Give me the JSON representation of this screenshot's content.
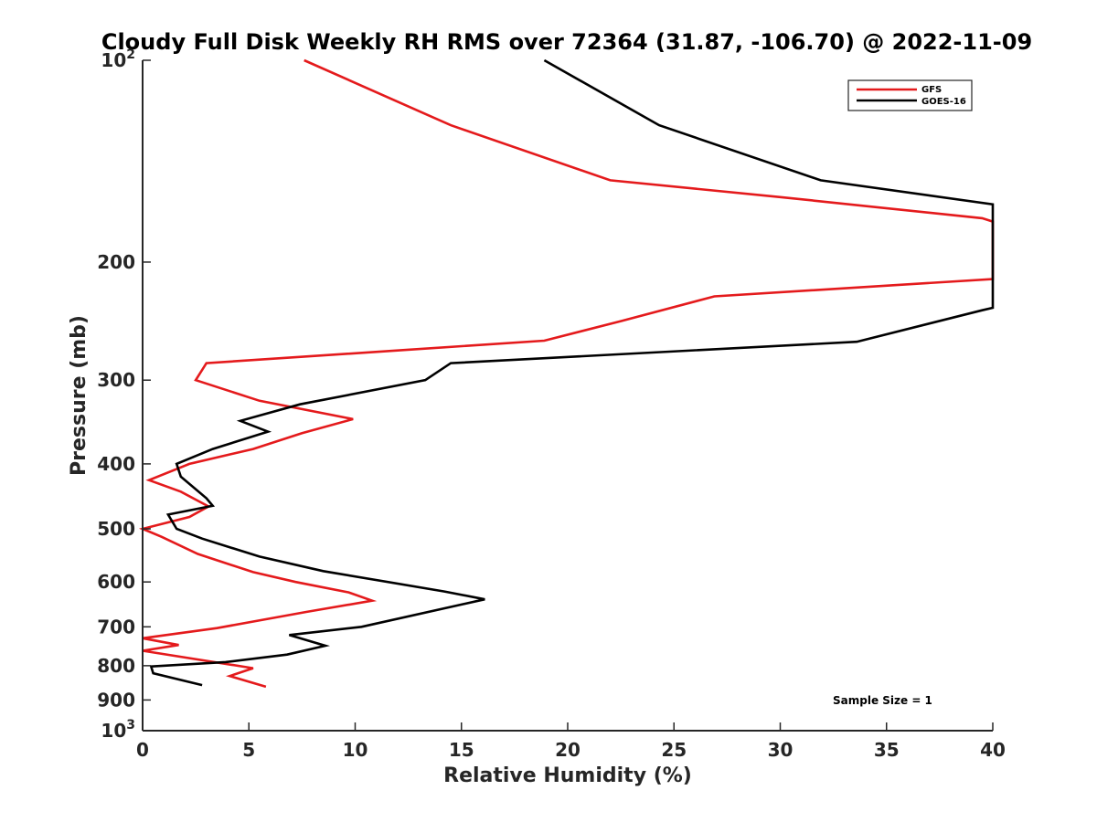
{
  "chart_data": {
    "type": "line",
    "title": "Cloudy Full Disk Weekly RH RMS over 72364 (31.87, -106.70) @ 2022-11-09",
    "xlabel": "Relative Humidity (%)",
    "ylabel": "Pressure (mb)",
    "xlim": [
      0,
      40
    ],
    "ylim": [
      100,
      1000
    ],
    "y_scale": "log",
    "y_reversed": true,
    "grid": false,
    "legend_position": "top-right",
    "x_ticks": [
      "0",
      "5",
      "10",
      "15",
      "20",
      "25",
      "30",
      "35",
      "40"
    ],
    "y_ticks": [
      {
        "value": 100,
        "base": "10",
        "exp": "2"
      },
      {
        "value": 200,
        "label": "200"
      },
      {
        "value": 300,
        "label": "300"
      },
      {
        "value": 400,
        "label": "400"
      },
      {
        "value": 500,
        "label": "500"
      },
      {
        "value": 600,
        "label": "600"
      },
      {
        "value": 700,
        "label": "700"
      },
      {
        "value": 800,
        "label": "800"
      },
      {
        "value": 900,
        "label": "900"
      },
      {
        "value": 1000,
        "base": "10",
        "exp": "3"
      }
    ],
    "series": [
      {
        "name": "GFS",
        "color": "#e41a1c",
        "points": [
          [
            7.6,
            100
          ],
          [
            14.5,
            125
          ],
          [
            22.0,
            151
          ],
          [
            30.0,
            160
          ],
          [
            39.5,
            172
          ],
          [
            40.0,
            174
          ],
          [
            40.0,
            212
          ],
          [
            26.9,
            225
          ],
          [
            22.5,
            245
          ],
          [
            18.9,
            262
          ],
          [
            3.0,
            283
          ],
          [
            2.5,
            300
          ],
          [
            5.5,
            322
          ],
          [
            9.9,
            343
          ],
          [
            7.5,
            360
          ],
          [
            5.2,
            380
          ],
          [
            2.2,
            400
          ],
          [
            0.3,
            423
          ],
          [
            1.8,
            440
          ],
          [
            3.1,
            463
          ],
          [
            2.2,
            480
          ],
          [
            0.0,
            500
          ],
          [
            0.9,
            514
          ],
          [
            2.6,
            545
          ],
          [
            5.2,
            580
          ],
          [
            7.2,
            600
          ],
          [
            9.7,
            622
          ],
          [
            10.8,
            640
          ],
          [
            7.7,
            665
          ],
          [
            3.5,
            703
          ],
          [
            0.0,
            728
          ],
          [
            1.7,
            745
          ],
          [
            0.0,
            760
          ],
          [
            5.2,
            807
          ],
          [
            4.1,
            829
          ],
          [
            5.8,
            860
          ]
        ]
      },
      {
        "name": "GOES-16",
        "color": "#000000",
        "points": [
          [
            18.9,
            100
          ],
          [
            24.3,
            125
          ],
          [
            31.9,
            151
          ],
          [
            40.0,
            164
          ],
          [
            40.0,
            234
          ],
          [
            39.5,
            236
          ],
          [
            33.6,
            263
          ],
          [
            14.5,
            283
          ],
          [
            13.3,
            300
          ],
          [
            7.4,
            326
          ],
          [
            4.6,
            345
          ],
          [
            5.9,
            358
          ],
          [
            3.3,
            380
          ],
          [
            1.6,
            400
          ],
          [
            1.8,
            418
          ],
          [
            3.0,
            450
          ],
          [
            3.3,
            462
          ],
          [
            1.2,
            476
          ],
          [
            1.6,
            500
          ],
          [
            2.8,
            517
          ],
          [
            5.5,
            550
          ],
          [
            8.5,
            578
          ],
          [
            14.2,
            620
          ],
          [
            16.1,
            637
          ],
          [
            10.3,
            700
          ],
          [
            6.9,
            720
          ],
          [
            8.6,
            747
          ],
          [
            6.8,
            770
          ],
          [
            3.9,
            790
          ],
          [
            0.4,
            802
          ],
          [
            0.5,
            821
          ],
          [
            2.8,
            855
          ]
        ]
      }
    ],
    "annotation": "Sample Size = 1"
  }
}
